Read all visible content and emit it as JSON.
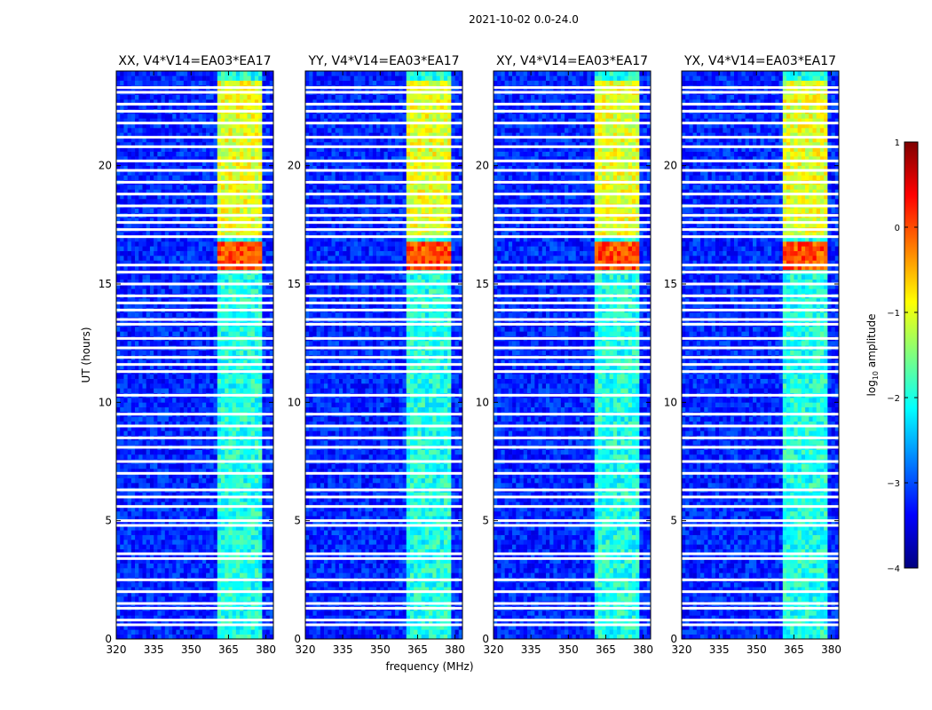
{
  "suptitle": "2021-10-02 0.0-24.0",
  "colors": {
    "background": "#ffffff",
    "axis": "#000000",
    "flag": "#ffffff",
    "colormap": [
      "#00007f",
      "#0000ff",
      "#007fff",
      "#00ffff",
      "#7fff7f",
      "#ffff00",
      "#ff7f00",
      "#ff0000",
      "#7f0000"
    ]
  },
  "chart_data": {
    "type": "heatmap",
    "title": "2021-10-02 0.0-24.0",
    "xlabel": "frequency (MHz)",
    "ylabel": "UT (hours)",
    "xlim": [
      320,
      383
    ],
    "ylim": [
      0,
      24
    ],
    "xticks": [
      320,
      335,
      350,
      365,
      380
    ],
    "yticks": [
      0,
      5,
      10,
      15,
      20
    ],
    "panels": [
      {
        "title": "XX, V4*V14=EA03*EA17",
        "polarization": "XX"
      },
      {
        "title": "YY, V4*V14=EA03*EA17",
        "polarization": "YY"
      },
      {
        "title": "XY, V4*V14=EA03*EA17",
        "polarization": "XY"
      },
      {
        "title": "YX, V4*V14=EA03*EA17",
        "polarization": "YX"
      }
    ],
    "colorbar": {
      "label": "log10 amplitude",
      "label_base": "log",
      "label_sub": "10",
      "label_rest": " amplitude",
      "range": [
        -4,
        1
      ],
      "ticks": [
        1,
        0,
        -1,
        -2,
        -3,
        -4
      ],
      "tick_labels": [
        "1",
        "0",
        "−1",
        "−2",
        "−3",
        "−4"
      ]
    },
    "band": {
      "low_mhz": 360,
      "high_mhz": 379
    },
    "background_log_amplitude": -3.2,
    "band_log_amplitude": -2,
    "bright_period": {
      "start_ut": 17,
      "end_ut": 23.5,
      "log_amplitude": -1
    },
    "peak_period": {
      "start_ut": 15.5,
      "end_ut": 16.7,
      "log_amplitude": 0
    },
    "flagged_ut_hours": [
      0.6,
      0.8,
      1.3,
      1.5,
      2.0,
      2.5,
      3.4,
      3.6,
      4.8,
      5.0,
      5.6,
      6.0,
      6.3,
      7.0,
      7.5,
      8.1,
      8.5,
      9.0,
      9.5,
      10.3,
      11.3,
      11.6,
      11.9,
      12.3,
      12.7,
      13.3,
      13.5,
      13.9,
      14.2,
      14.5,
      15.0,
      15.5,
      15.8,
      17.0,
      17.3,
      17.6,
      17.9,
      18.3,
      18.8,
      19.3,
      19.8,
      20.2,
      20.8,
      21.2,
      21.8,
      22.3,
      22.6,
      23.1,
      23.3
    ]
  }
}
